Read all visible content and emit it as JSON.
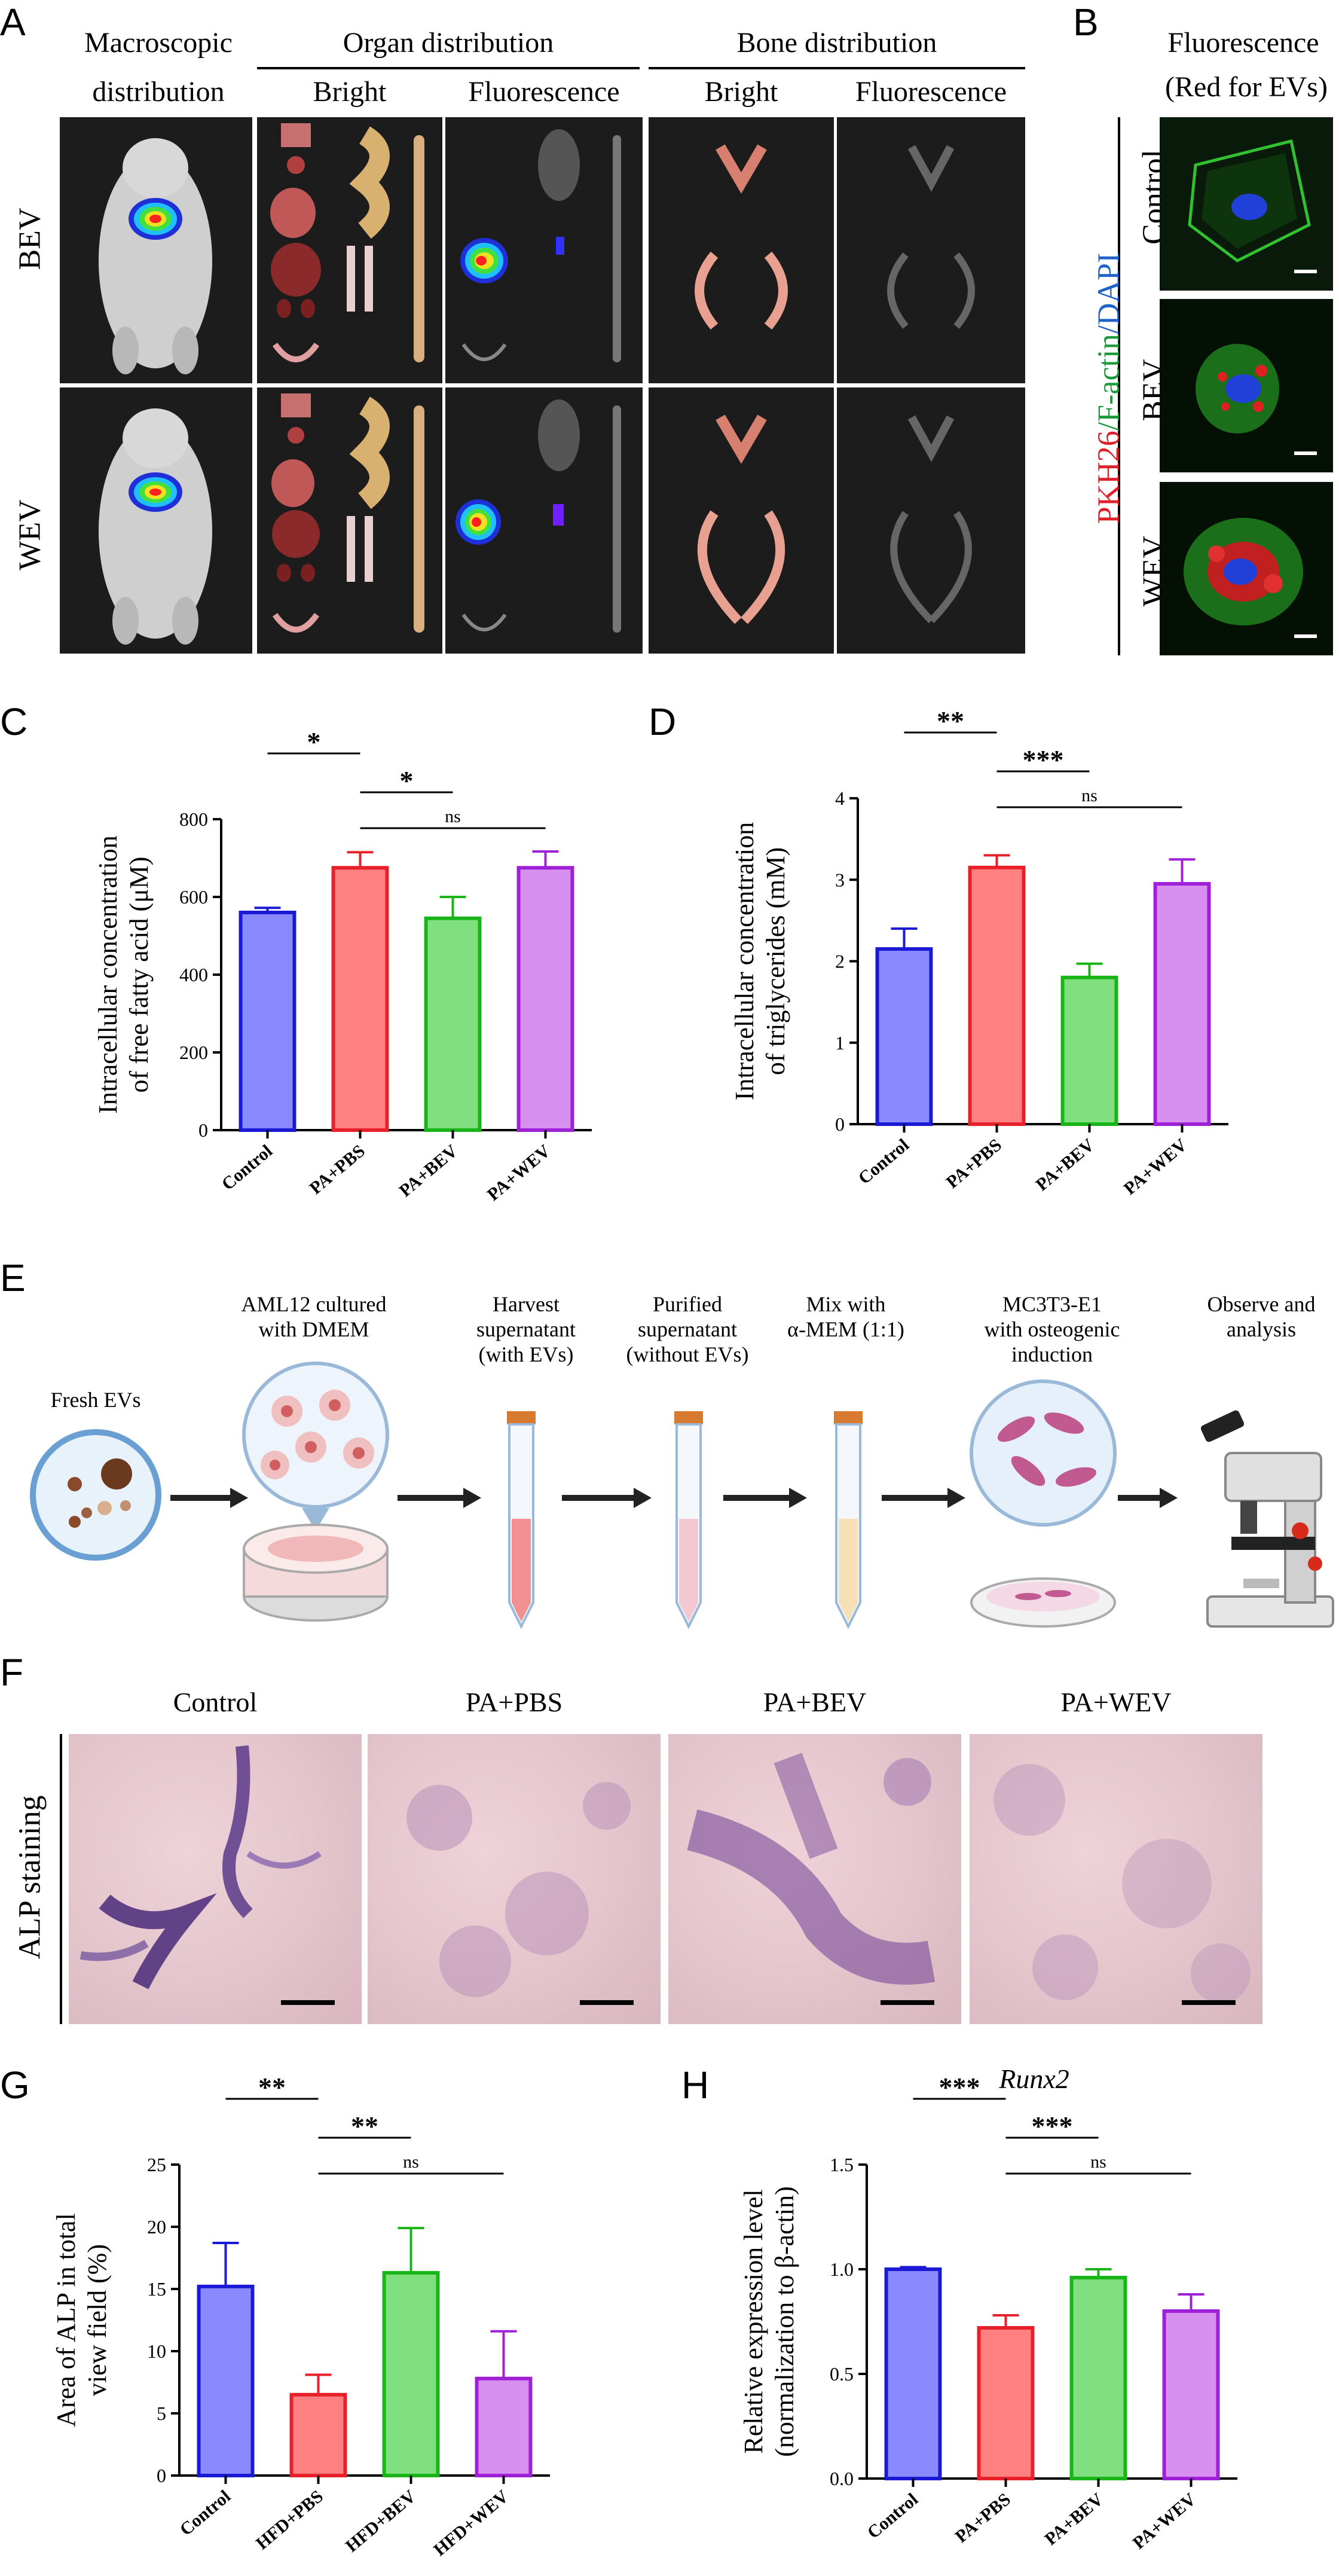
{
  "panelA": {
    "label": "A",
    "headers": {
      "macroscopic_line1": "Macroscopic",
      "macroscopic_line2": "distribution",
      "organ": "Organ distribution",
      "bone": "Bone distribution",
      "bright1": "Bright",
      "fluor1": "Fluorescence",
      "bright2": "Bright",
      "fluor2": "Fluorescence"
    },
    "rows": [
      "BEV",
      "WEV"
    ]
  },
  "panelB": {
    "label": "B",
    "title_line1": "Fluorescence",
    "title_line2": "(Red for EVs)",
    "stain_red": "PKH26",
    "stain_green": "/F-actin",
    "stain_blue": "/DAPI",
    "rows": [
      "Control",
      "BEV",
      "WEV"
    ],
    "colors": {
      "red": "#e0202a",
      "green": "#1a9a3a",
      "blue": "#1f63c8"
    }
  },
  "panelC": {
    "label": "C",
    "chart_data": {
      "type": "bar",
      "categories": [
        "Control",
        "PA+PBS",
        "PA+BEV",
        "PA+WEV"
      ],
      "values": [
        560,
        675,
        545,
        675
      ],
      "errors": [
        12,
        40,
        55,
        42
      ],
      "ylabel_line1": "Intracellular concentration",
      "ylabel_line2": "of free fatty acid (μM)",
      "ylim": [
        0,
        800
      ],
      "yticks": [
        "0",
        "200",
        "400",
        "600",
        "800"
      ],
      "colors": [
        "#1a1ad6",
        "#e8202a",
        "#18b418",
        "#a020d8"
      ],
      "fills": [
        "#8a8aff",
        "#ff8080",
        "#80e080",
        "#d890f0"
      ],
      "significance": [
        {
          "from": 0,
          "to": 1,
          "label": "*"
        },
        {
          "from": 1,
          "to": 2,
          "label": "*"
        },
        {
          "from": 1,
          "to": 3,
          "label": "ns"
        }
      ]
    }
  },
  "panelD": {
    "label": "D",
    "chart_data": {
      "type": "bar",
      "categories": [
        "Control",
        "PA+PBS",
        "PA+BEV",
        "PA+WEV"
      ],
      "values": [
        2.15,
        3.15,
        1.8,
        2.95
      ],
      "errors": [
        0.25,
        0.15,
        0.17,
        0.3
      ],
      "ylabel_line1": "Intracellular concentration",
      "ylabel_line2": "of triglycerides (mM)",
      "ylim": [
        0,
        4
      ],
      "yticks": [
        "0",
        "1",
        "2",
        "3",
        "4"
      ],
      "colors": [
        "#1a1ad6",
        "#e8202a",
        "#18b418",
        "#a020d8"
      ],
      "fills": [
        "#8a8aff",
        "#ff8080",
        "#80e080",
        "#d890f0"
      ],
      "significance": [
        {
          "from": 0,
          "to": 1,
          "label": "**"
        },
        {
          "from": 1,
          "to": 2,
          "label": "***"
        },
        {
          "from": 1,
          "to": 3,
          "label": "ns"
        }
      ]
    }
  },
  "panelE": {
    "label": "E",
    "steps": [
      {
        "line1": "Fresh EVs",
        "line2": "",
        "line3": ""
      },
      {
        "line1": "AML12 cultured",
        "line2": "with DMEM",
        "line3": ""
      },
      {
        "line1": "Harvest",
        "line2": "supernatant",
        "line3": "(with EVs)"
      },
      {
        "line1": "Purified",
        "line2": "supernatant",
        "line3": "(without EVs)"
      },
      {
        "line1": "Mix with",
        "line2": "α-MEM (1:1)",
        "line3": ""
      },
      {
        "line1": "MC3T3-E1",
        "line2": "with osteogenic",
        "line3": "induction"
      },
      {
        "line1": "Observe and",
        "line2": "analysis",
        "line3": ""
      }
    ]
  },
  "panelF": {
    "label": "F",
    "row_label": "ALP staining",
    "columns": [
      "Control",
      "PA+PBS",
      "PA+BEV",
      "PA+WEV"
    ]
  },
  "panelG": {
    "label": "G",
    "chart_data": {
      "type": "bar",
      "categories": [
        "Control",
        "HFD+PBS",
        "HFD+BEV",
        "HFD+WEV"
      ],
      "values": [
        15.2,
        6.5,
        16.3,
        7.8
      ],
      "errors": [
        3.5,
        1.6,
        3.6,
        3.8
      ],
      "ylabel_line1": "Area of ALP in total",
      "ylabel_line2": "view field (%)",
      "ylim": [
        0,
        25
      ],
      "yticks": [
        "0",
        "5",
        "10",
        "15",
        "20",
        "25"
      ],
      "colors": [
        "#1a1ad6",
        "#e8202a",
        "#18b418",
        "#a020d8"
      ],
      "fills": [
        "#8a8aff",
        "#ff8080",
        "#80e080",
        "#d890f0"
      ],
      "significance": [
        {
          "from": 0,
          "to": 1,
          "label": "**"
        },
        {
          "from": 1,
          "to": 2,
          "label": "**"
        },
        {
          "from": 1,
          "to": 3,
          "label": "ns"
        }
      ]
    }
  },
  "panelH": {
    "label": "H",
    "title": "Runx2",
    "chart_data": {
      "type": "bar",
      "categories": [
        "Control",
        "PA+PBS",
        "PA+BEV",
        "PA+WEV"
      ],
      "values": [
        1.0,
        0.72,
        0.96,
        0.8
      ],
      "errors": [
        0.01,
        0.06,
        0.04,
        0.08
      ],
      "ylabel_line1": "Relative expression level",
      "ylabel_line2": "(normalization to β-actin)",
      "ylim": [
        0,
        1.5
      ],
      "yticks": [
        "0.0",
        "0.5",
        "1.0",
        "1.5"
      ],
      "colors": [
        "#1a1ad6",
        "#e8202a",
        "#18b418",
        "#a020d8"
      ],
      "fills": [
        "#8a8aff",
        "#ff8080",
        "#80e080",
        "#d890f0"
      ],
      "significance": [
        {
          "from": 0,
          "to": 1,
          "label": "***"
        },
        {
          "from": 1,
          "to": 2,
          "label": "***"
        },
        {
          "from": 1,
          "to": 3,
          "label": "ns"
        }
      ]
    }
  }
}
